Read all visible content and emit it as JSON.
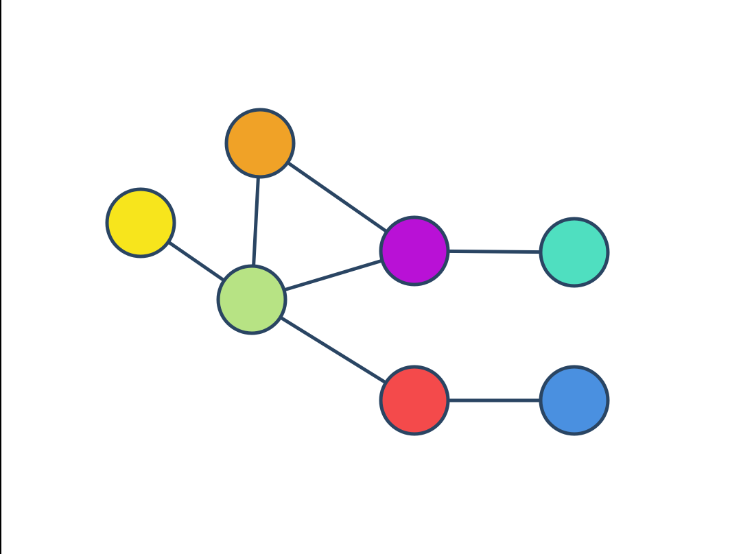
{
  "diagram": {
    "type": "undirected-graph",
    "stroke_color": "#2a4563",
    "nodes": [
      {
        "id": "orange",
        "color": "#f0a227"
      },
      {
        "id": "yellow",
        "color": "#f7e51c"
      },
      {
        "id": "light-green",
        "color": "#b7e384"
      },
      {
        "id": "purple",
        "color": "#b911d6"
      },
      {
        "id": "teal",
        "color": "#4fdfc0"
      },
      {
        "id": "red",
        "color": "#f44a4b"
      },
      {
        "id": "blue",
        "color": "#4a90e0"
      }
    ],
    "edges": [
      {
        "from": "orange",
        "to": "light-green"
      },
      {
        "from": "orange",
        "to": "purple"
      },
      {
        "from": "yellow",
        "to": "light-green"
      },
      {
        "from": "light-green",
        "to": "purple"
      },
      {
        "from": "light-green",
        "to": "red"
      },
      {
        "from": "purple",
        "to": "teal"
      },
      {
        "from": "red",
        "to": "blue"
      }
    ]
  }
}
